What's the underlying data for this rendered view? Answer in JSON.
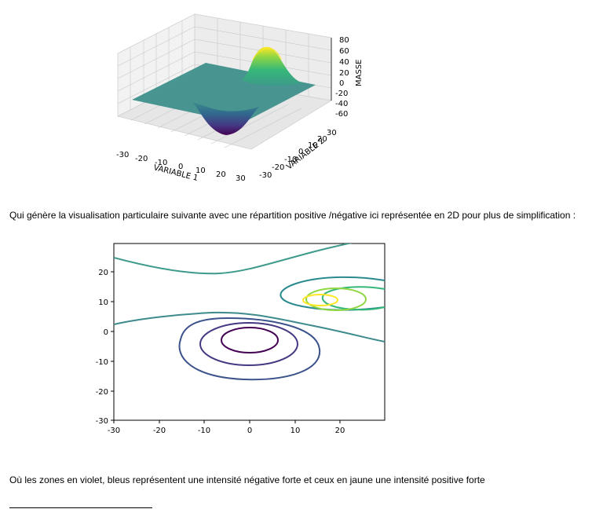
{
  "text": {
    "paragraph_1": "Qui génère la visualisation particulaire suivante avec une répartition positive /négative ici représentée en 2D pour plus de simplification :",
    "paragraph_2": "Où les zones en violet, bleus représentent une intensité négative forte et ceux en jaune une intensité positive forte"
  },
  "chart_data": [
    {
      "type": "surface",
      "xlabel": "VARIABLE 1",
      "ylabel": "VARIABLE 2",
      "zlabel": "MASSE",
      "x_ticks": [
        -30,
        -20,
        -10,
        0,
        10,
        20,
        30
      ],
      "y_ticks": [
        -30,
        -20,
        -10,
        0,
        10,
        20,
        30
      ],
      "z_ticks": [
        80,
        60,
        40,
        20,
        0,
        -20,
        -40,
        -60
      ],
      "xlim": [
        -30,
        30
      ],
      "ylim": [
        -30,
        30
      ],
      "zlim": [
        -70,
        85
      ],
      "peaks": [
        {
          "x": 15,
          "y": 10,
          "z": 85,
          "color": "#fde725"
        },
        {
          "x": 0,
          "y": -2,
          "z": -70,
          "color": "#440154"
        }
      ],
      "colormap": "viridis",
      "grid": true
    },
    {
      "type": "contour",
      "xlim": [
        -30,
        30
      ],
      "ylim": [
        -30,
        30
      ],
      "x_ticks": [
        -30,
        -20,
        -10,
        0,
        10,
        20
      ],
      "y_ticks": [
        20,
        10,
        0,
        -10,
        -20,
        -30
      ],
      "levels": [
        {
          "level": -3,
          "color": "#440154"
        },
        {
          "level": -2,
          "color": "#3b528b"
        },
        {
          "level": -1,
          "color": "#3e4989"
        },
        {
          "level": 0,
          "color": "#2a788e"
        },
        {
          "level": 1,
          "color": "#22a884"
        },
        {
          "level": 2,
          "color": "#7ad151"
        },
        {
          "level": 3,
          "color": "#fde725"
        }
      ],
      "grid": false
    }
  ]
}
